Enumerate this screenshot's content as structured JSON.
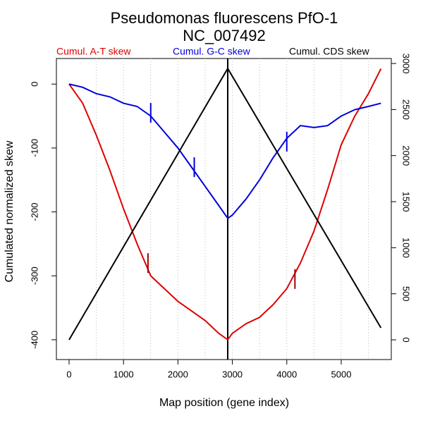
{
  "chart_data": {
    "type": "line",
    "title": "Pseudomonas fluorescens PfO-1",
    "subtitle": "NC_007492",
    "x_label": "Map position (gene index)",
    "y_label": "Cumulated normalized skew",
    "xlim": [
      -233,
      5920
    ],
    "xticks": [
      0,
      1000,
      2000,
      3000,
      4000,
      5000
    ],
    "ylim": [
      -431,
      40
    ],
    "yticks": [
      0,
      -100,
      -200,
      -300,
      -400
    ],
    "y2lim": [
      -214,
      3054
    ],
    "y2ticks": [
      0,
      500,
      1000,
      1500,
      2000,
      2500,
      3000
    ],
    "vgrid": [
      500,
      1000,
      1500,
      2000,
      2500,
      3000,
      3500,
      4000,
      4500,
      5000,
      5500
    ],
    "vline": 2915,
    "series": [
      {
        "name": "Cumul. A-T skew",
        "color": "#e00000",
        "x": [
          0,
          250,
          500,
          750,
          1000,
          1250,
          1500,
          1750,
          2000,
          2250,
          2500,
          2750,
          2915,
          3000,
          3250,
          3500,
          3750,
          4000,
          4250,
          4500,
          4750,
          5000,
          5250,
          5500,
          5730
        ],
        "values": [
          0,
          -30,
          -80,
          -135,
          -195,
          -250,
          -300,
          -320,
          -340,
          -355,
          -370,
          -390,
          -400,
          -390,
          -375,
          -365,
          -345,
          -320,
          -280,
          -230,
          -165,
          -95,
          -50,
          -15,
          24
        ],
        "marks_x": [
          1450,
          4150
        ],
        "marks_y": [
          -280,
          -305
        ]
      },
      {
        "name": "Cumul. G-C skew",
        "color": "#0000dd",
        "x": [
          0,
          250,
          500,
          750,
          1000,
          1250,
          1500,
          1750,
          2000,
          2250,
          2500,
          2750,
          2915,
          3000,
          3250,
          3500,
          3750,
          4000,
          4250,
          4500,
          4750,
          5000,
          5250,
          5500,
          5730
        ],
        "values": [
          0,
          -5,
          -15,
          -20,
          -30,
          -35,
          -50,
          -75,
          -100,
          -130,
          -160,
          -190,
          -210,
          -205,
          -180,
          -150,
          -115,
          -85,
          -65,
          -68,
          -65,
          -50,
          -40,
          -35,
          -30
        ],
        "marks_x": [
          1500,
          2300,
          4000
        ],
        "marks_y": [
          -45,
          -130,
          -90
        ]
      },
      {
        "name": "Cumul. CDS skew",
        "color": "#000000",
        "axis": "y2",
        "x": [
          0,
          2915,
          5730
        ],
        "values": [
          0,
          2946,
          130
        ]
      }
    ]
  }
}
